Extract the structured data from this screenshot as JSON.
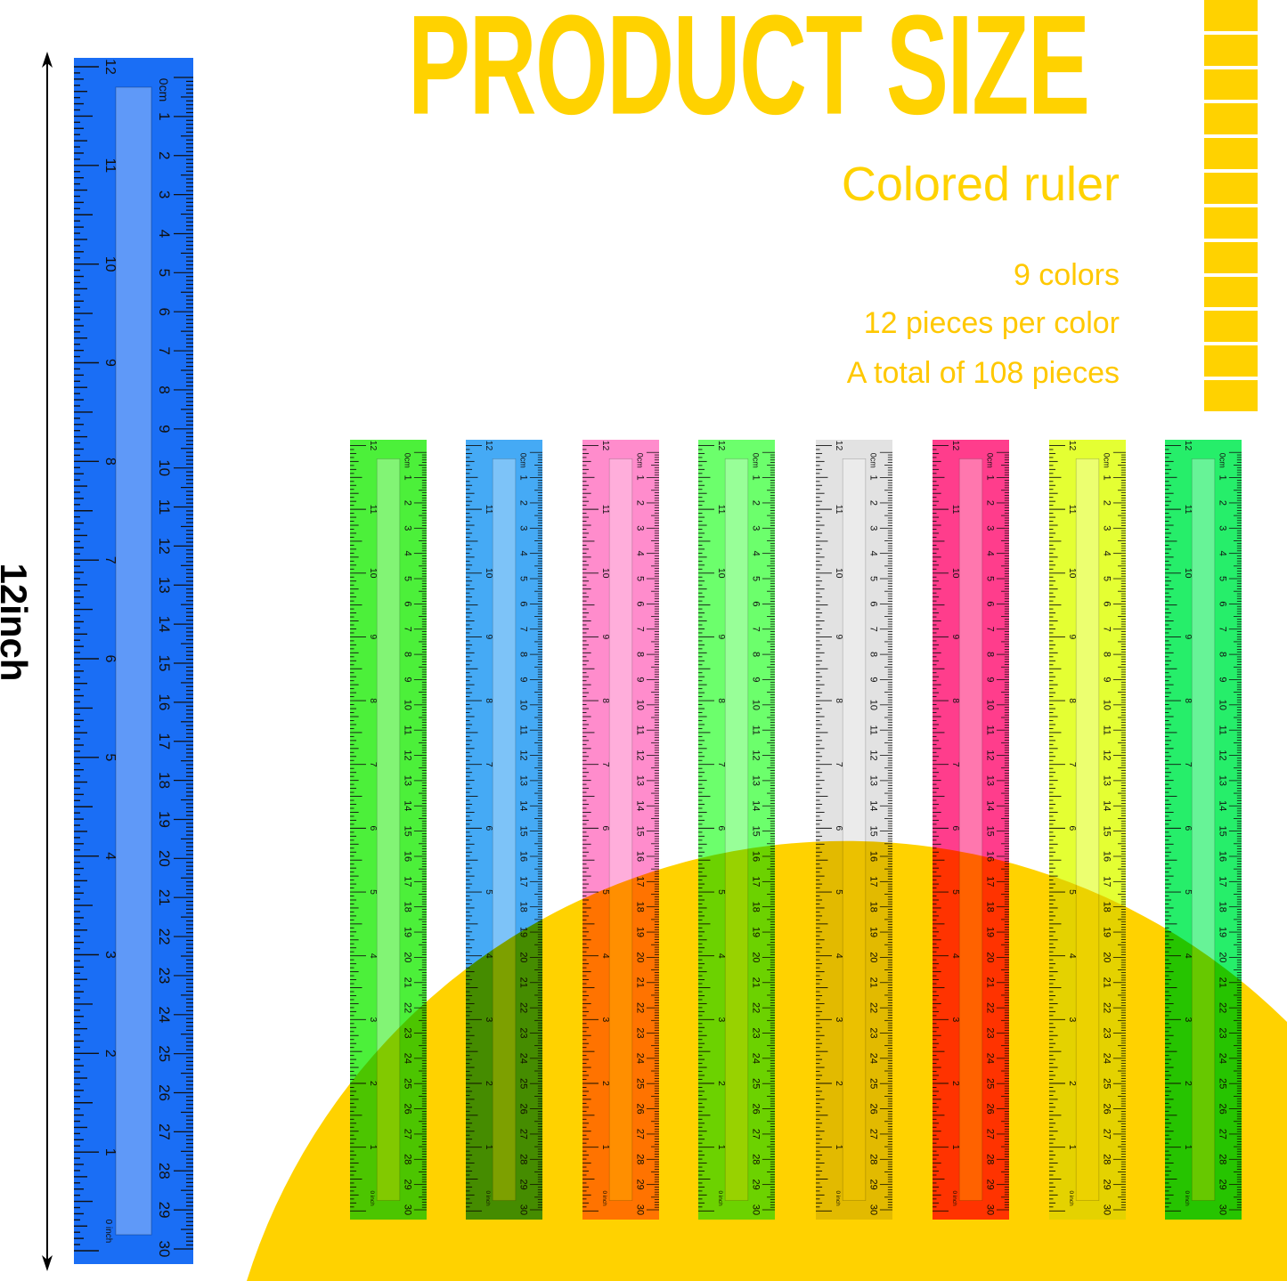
{
  "header": {
    "title": "PRODUCT SIZE",
    "subtitle": "Colored ruler",
    "specs": [
      "9 colors",
      "12 pieces per color",
      "A total of 108 pieces"
    ]
  },
  "dimension": {
    "label": "12inch"
  },
  "ruler_scale": {
    "inch_labels": [
      "0 inch",
      "1",
      "2",
      "3",
      "4",
      "5",
      "6",
      "7",
      "8",
      "9",
      "10",
      "11",
      "12"
    ],
    "cm_labels": [
      "0cm",
      "1",
      "2",
      "3",
      "4",
      "5",
      "6",
      "7",
      "8",
      "9",
      "10",
      "11",
      "12",
      "13",
      "14",
      "15",
      "16",
      "17",
      "18",
      "19",
      "20",
      "21",
      "22",
      "23",
      "24",
      "25",
      "26",
      "27",
      "28",
      "29",
      "30"
    ]
  },
  "colors": {
    "accent_yellow": "#ffd200",
    "large_ruler": "#1a6ef5",
    "small_rulers": [
      "#4cf03a",
      "#45aaf5",
      "#ff8ccc",
      "#6cff6c",
      "#e2e2e2",
      "#ff3d8c",
      "#e4ff33",
      "#26ee6a"
    ]
  }
}
